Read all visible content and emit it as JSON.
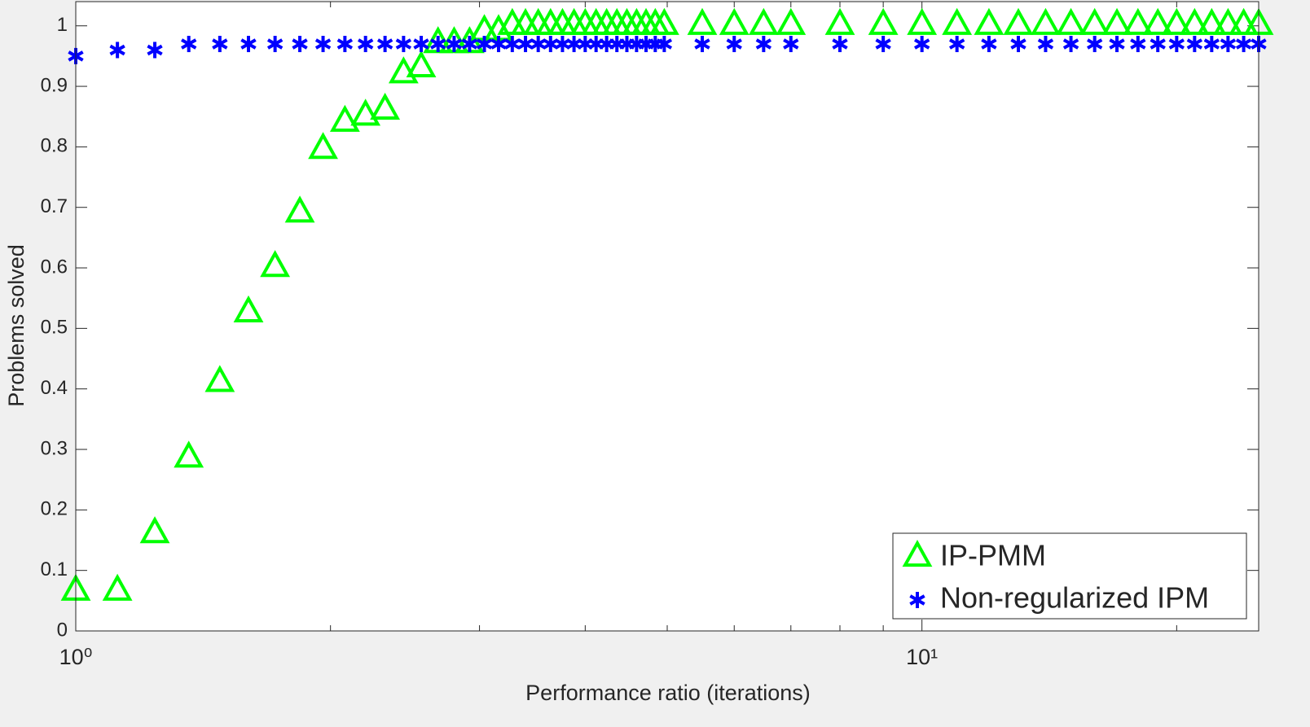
{
  "chart_data": {
    "type": "scatter",
    "xlabel": "Performance ratio (iterations)",
    "ylabel": "Problems solved",
    "xscale": "log",
    "xlim": [
      1,
      25
    ],
    "ylim": [
      0,
      1.04
    ],
    "xticks": [
      {
        "value": 1,
        "label": "10⁰"
      },
      {
        "value": 10,
        "label": "10¹"
      }
    ],
    "xminor_ticks": [
      2,
      3,
      4,
      5,
      6,
      7,
      8,
      9,
      20
    ],
    "yticks": [
      0,
      0.1,
      0.2,
      0.3,
      0.4,
      0.5,
      0.6,
      0.7,
      0.8,
      0.9,
      1
    ],
    "legend": "lower right",
    "x": [
      1,
      1.12,
      1.24,
      1.36,
      1.48,
      1.6,
      1.72,
      1.84,
      1.96,
      2.08,
      2.2,
      2.32,
      2.44,
      2.56,
      2.68,
      2.8,
      2.92,
      3.04,
      3.16,
      3.28,
      3.4,
      3.52,
      3.64,
      3.76,
      3.88,
      4,
      4.12,
      4.24,
      4.36,
      4.48,
      4.6,
      4.72,
      4.84,
      4.96,
      5.5,
      6,
      6.5,
      7,
      8,
      9,
      10,
      11,
      12,
      13,
      14,
      15,
      16,
      17,
      18,
      19,
      20,
      21,
      22,
      23,
      24,
      25
    ],
    "series": [
      {
        "name": "IP-PMM",
        "color": "#00ff00",
        "marker": "triangle",
        "values": [
          0.065,
          0.065,
          0.16,
          0.285,
          0.41,
          0.525,
          0.6,
          0.69,
          0.795,
          0.84,
          0.85,
          0.86,
          0.92,
          0.93,
          0.97,
          0.97,
          0.97,
          0.99,
          0.99,
          1,
          1,
          1,
          1,
          1,
          1,
          1,
          1,
          1,
          1,
          1,
          1,
          1,
          1,
          1,
          1,
          1,
          1,
          1,
          1,
          1,
          1,
          1,
          1,
          1,
          1,
          1,
          1,
          1,
          1,
          1,
          1,
          1,
          1,
          1,
          1,
          1
        ]
      },
      {
        "name": "Non-regularized IPM",
        "color": "#0000ff",
        "marker": "asterisk",
        "values": [
          0.95,
          0.96,
          0.96,
          0.97,
          0.97,
          0.97,
          0.97,
          0.97,
          0.97,
          0.97,
          0.97,
          0.97,
          0.97,
          0.97,
          0.97,
          0.97,
          0.97,
          0.97,
          0.97,
          0.97,
          0.97,
          0.97,
          0.97,
          0.97,
          0.97,
          0.97,
          0.97,
          0.97,
          0.97,
          0.97,
          0.97,
          0.97,
          0.97,
          0.97,
          0.97,
          0.97,
          0.97,
          0.97,
          0.97,
          0.97,
          0.97,
          0.97,
          0.97,
          0.97,
          0.97,
          0.97,
          0.97,
          0.97,
          0.97,
          0.97,
          0.97,
          0.97,
          0.97,
          0.97,
          0.97,
          0.97
        ]
      }
    ]
  }
}
